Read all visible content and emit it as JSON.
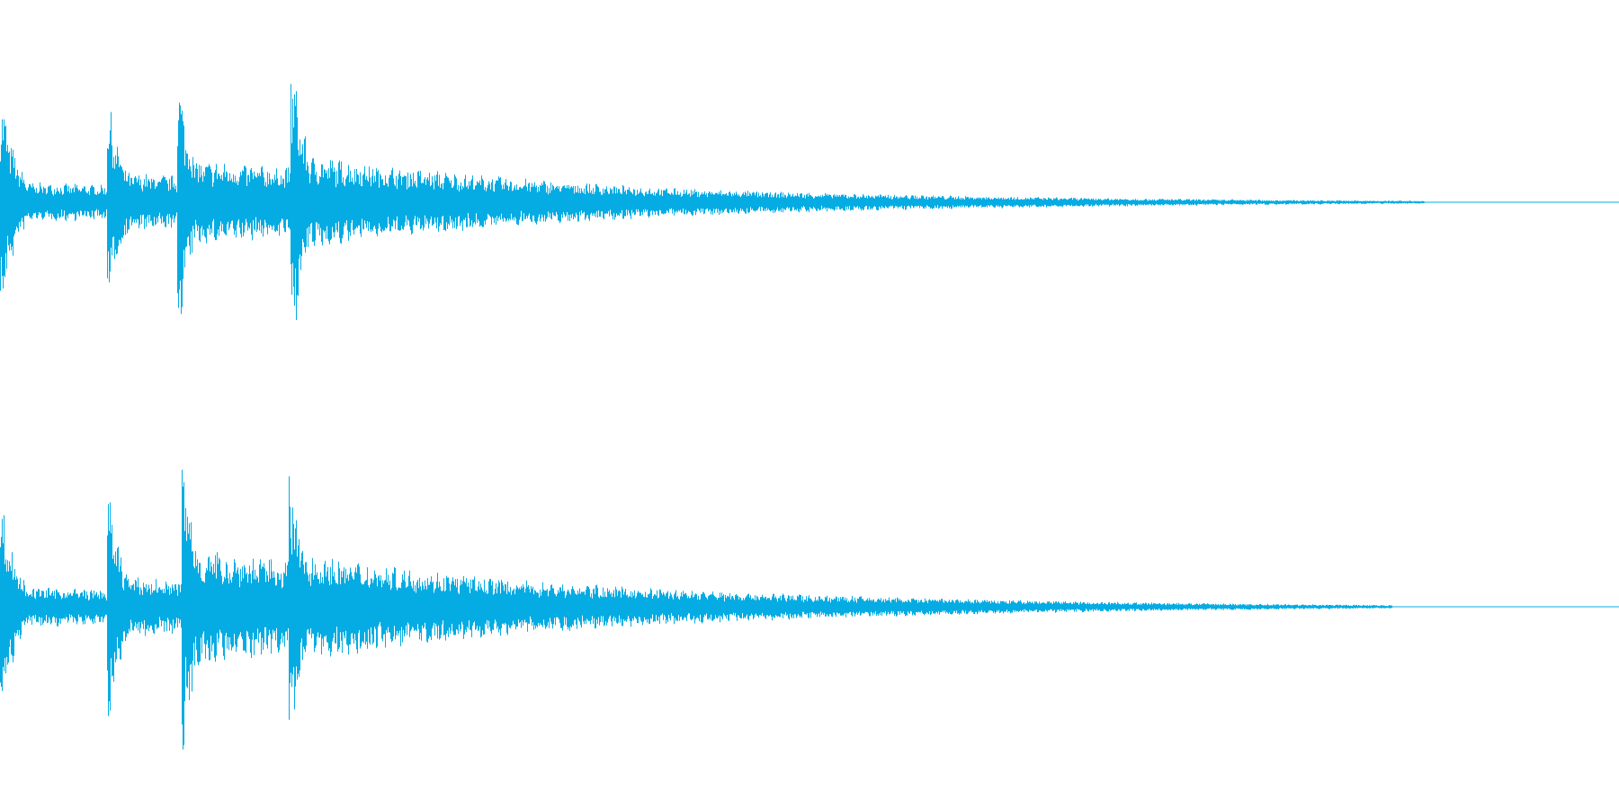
{
  "waveform": {
    "channels": [
      {
        "id": "left",
        "baseline": 0.0,
        "onsets": [
          {
            "time": 0.0,
            "peak": 0.68,
            "sustain": 0.12,
            "decay": 0.35
          },
          {
            "time": 0.066,
            "peak": 0.65,
            "sustain": 0.18,
            "decay": 0.3
          },
          {
            "time": 0.109,
            "peak": 0.84,
            "sustain": 0.26,
            "decay": 0.32
          },
          {
            "time": 0.179,
            "peak": 1.0,
            "sustain": 0.3,
            "decay": 0.22
          }
        ],
        "tail_end": 0.88
      },
      {
        "id": "right",
        "baseline": 0.0,
        "onsets": [
          {
            "time": 0.0,
            "peak": 0.68,
            "sustain": 0.12,
            "decay": 0.35
          },
          {
            "time": 0.066,
            "peak": 0.72,
            "sustain": 0.18,
            "decay": 0.3
          },
          {
            "time": 0.112,
            "peak": 1.0,
            "sustain": 0.35,
            "decay": 0.3
          },
          {
            "time": 0.178,
            "peak": 0.92,
            "sustain": 0.34,
            "decay": 0.22
          }
        ],
        "tail_end": 0.86
      }
    ],
    "color": "#05ACE3",
    "background": "#FFFFFF",
    "seed": 7
  }
}
